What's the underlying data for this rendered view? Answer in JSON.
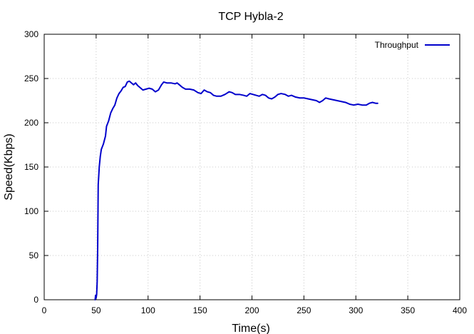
{
  "chart_data": {
    "type": "line",
    "title": "TCP Hybla-2",
    "xlabel": "Time(s)",
    "ylabel": "Speed(Kbps)",
    "xlim": [
      0,
      400
    ],
    "ylim": [
      0,
      300
    ],
    "xticks": [
      "0",
      "50",
      "100",
      "150",
      "200",
      "250",
      "300",
      "350",
      "400"
    ],
    "yticks": [
      "0",
      "50",
      "100",
      "150",
      "200",
      "250",
      "300"
    ],
    "grid": true,
    "legend": "top-right",
    "series": [
      {
        "name": "Throughput",
        "color": "#0000cc",
        "points": [
          [
            49,
            0
          ],
          [
            49.5,
            5
          ],
          [
            50,
            2
          ],
          [
            50.5,
            6
          ],
          [
            51,
            20
          ],
          [
            51.5,
            60
          ],
          [
            52,
            130
          ],
          [
            53,
            150
          ],
          [
            54,
            162
          ],
          [
            55,
            170
          ],
          [
            57,
            176
          ],
          [
            59,
            185
          ],
          [
            60,
            196
          ],
          [
            62,
            202
          ],
          [
            64,
            211
          ],
          [
            66,
            216
          ],
          [
            68,
            220
          ],
          [
            70,
            228
          ],
          [
            72,
            233
          ],
          [
            74,
            236
          ],
          [
            76,
            240
          ],
          [
            78,
            241
          ],
          [
            80,
            246
          ],
          [
            82,
            247
          ],
          [
            84,
            245
          ],
          [
            86,
            243
          ],
          [
            88,
            245
          ],
          [
            90,
            242
          ],
          [
            92,
            240
          ],
          [
            95,
            237
          ],
          [
            98,
            238
          ],
          [
            101,
            239
          ],
          [
            104,
            238
          ],
          [
            107,
            235
          ],
          [
            110,
            237
          ],
          [
            113,
            243
          ],
          [
            115,
            246
          ],
          [
            118,
            245
          ],
          [
            122,
            245
          ],
          [
            126,
            244
          ],
          [
            128,
            245
          ],
          [
            130,
            243
          ],
          [
            133,
            240
          ],
          [
            136,
            238
          ],
          [
            140,
            238
          ],
          [
            144,
            237
          ],
          [
            148,
            234
          ],
          [
            151,
            233
          ],
          [
            154,
            237
          ],
          [
            157,
            235
          ],
          [
            160,
            234
          ],
          [
            163,
            231
          ],
          [
            166,
            230
          ],
          [
            170,
            230
          ],
          [
            174,
            232
          ],
          [
            178,
            235
          ],
          [
            181,
            234
          ],
          [
            184,
            232
          ],
          [
            188,
            232
          ],
          [
            192,
            231
          ],
          [
            195,
            230
          ],
          [
            198,
            233
          ],
          [
            201,
            232
          ],
          [
            204,
            231
          ],
          [
            207,
            230
          ],
          [
            210,
            232
          ],
          [
            213,
            231
          ],
          [
            216,
            228
          ],
          [
            219,
            227
          ],
          [
            222,
            229
          ],
          [
            225,
            232
          ],
          [
            228,
            233
          ],
          [
            232,
            232
          ],
          [
            235,
            230
          ],
          [
            238,
            231
          ],
          [
            242,
            229
          ],
          [
            246,
            228
          ],
          [
            250,
            228
          ],
          [
            254,
            227
          ],
          [
            258,
            226
          ],
          [
            262,
            225
          ],
          [
            265,
            223
          ],
          [
            268,
            225
          ],
          [
            271,
            228
          ],
          [
            274,
            227
          ],
          [
            278,
            226
          ],
          [
            282,
            225
          ],
          [
            286,
            224
          ],
          [
            290,
            223
          ],
          [
            294,
            221
          ],
          [
            298,
            220
          ],
          [
            302,
            221
          ],
          [
            306,
            220
          ],
          [
            310,
            220
          ],
          [
            313,
            222
          ],
          [
            316,
            223
          ],
          [
            319,
            222
          ],
          [
            321,
            222
          ]
        ]
      }
    ]
  }
}
